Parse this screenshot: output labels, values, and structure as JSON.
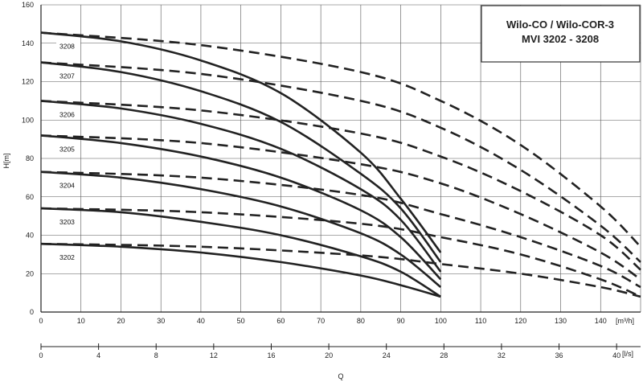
{
  "chart_data": {
    "type": "line",
    "title": [
      "Wilo-CO / Wilo-COR-3",
      "MVI 3202 - 3208"
    ],
    "ylabel": "H[m]",
    "xlabel": "Q",
    "x_unit_top": "[m³/h]",
    "x_unit_bottom": "[l/s]",
    "xlim": [
      0,
      150
    ],
    "ylim": [
      0,
      160
    ],
    "x_ticks": [
      0,
      10,
      20,
      30,
      40,
      50,
      60,
      70,
      80,
      90,
      100,
      110,
      120,
      130,
      140
    ],
    "y_ticks": [
      0,
      20,
      40,
      60,
      80,
      100,
      120,
      140,
      160
    ],
    "x2_ticks": [
      "0",
      "4",
      "8",
      "12",
      "16",
      "20",
      "24",
      "28",
      "32",
      "36",
      "40"
    ],
    "grid": true,
    "series": [
      {
        "name": "3208",
        "solid": {
          "x": [
            0,
            20,
            40,
            60,
            80,
            90,
            100
          ],
          "y": [
            145.5,
            141,
            131,
            114,
            83,
            59,
            31
          ]
        },
        "dashed": {
          "x": [
            0,
            40,
            80,
            100,
            120,
            140,
            150
          ],
          "y": [
            145.5,
            139,
            125,
            110,
            87,
            55,
            34
          ]
        }
      },
      {
        "name": "3207",
        "solid": {
          "x": [
            0,
            20,
            40,
            60,
            80,
            90,
            100
          ],
          "y": [
            130,
            125,
            115,
            99,
            72,
            54,
            26
          ]
        },
        "dashed": {
          "x": [
            0,
            40,
            80,
            100,
            120,
            140,
            150
          ],
          "y": [
            130,
            124,
            110,
            96,
            74,
            45,
            26
          ]
        }
      },
      {
        "name": "3206",
        "solid": {
          "x": [
            0,
            20,
            40,
            60,
            80,
            90,
            100
          ],
          "y": [
            110,
            106,
            98,
            85,
            64,
            48,
            21
          ]
        },
        "dashed": {
          "x": [
            0,
            40,
            80,
            100,
            120,
            140,
            150
          ],
          "y": [
            110,
            105,
            93,
            81,
            63,
            40,
            22
          ]
        }
      },
      {
        "name": "3205",
        "solid": {
          "x": [
            0,
            20,
            40,
            60,
            80,
            90,
            100
          ],
          "y": [
            92,
            88,
            81,
            70,
            53,
            39,
            17
          ]
        },
        "dashed": {
          "x": [
            0,
            40,
            80,
            100,
            120,
            140,
            150
          ],
          "y": [
            92,
            88,
            77,
            67,
            51,
            31,
            17
          ]
        }
      },
      {
        "name": "3204",
        "solid": {
          "x": [
            0,
            20,
            40,
            60,
            80,
            90,
            100
          ],
          "y": [
            73,
            70,
            64,
            55,
            41,
            30,
            13
          ]
        },
        "dashed": {
          "x": [
            0,
            40,
            80,
            100,
            120,
            140,
            150
          ],
          "y": [
            73,
            70,
            61,
            51,
            39,
            24,
            13
          ]
        }
      },
      {
        "name": "3203",
        "solid": {
          "x": [
            0,
            20,
            40,
            60,
            80,
            90,
            100
          ],
          "y": [
            54,
            52,
            47,
            40,
            29,
            21,
            8
          ]
        },
        "dashed": {
          "x": [
            0,
            40,
            80,
            100,
            120,
            140,
            150
          ],
          "y": [
            54,
            52,
            46,
            39,
            30,
            17,
            8
          ]
        }
      },
      {
        "name": "3202",
        "solid": {
          "x": [
            0,
            20,
            40,
            60,
            80,
            90,
            100
          ],
          "y": [
            35.5,
            34,
            31,
            26,
            19,
            14,
            8
          ]
        },
        "dashed": {
          "x": [
            0,
            40,
            80,
            100,
            120,
            140,
            150
          ],
          "y": [
            35.5,
            34,
            29.5,
            25,
            20,
            13,
            8
          ]
        }
      }
    ]
  }
}
